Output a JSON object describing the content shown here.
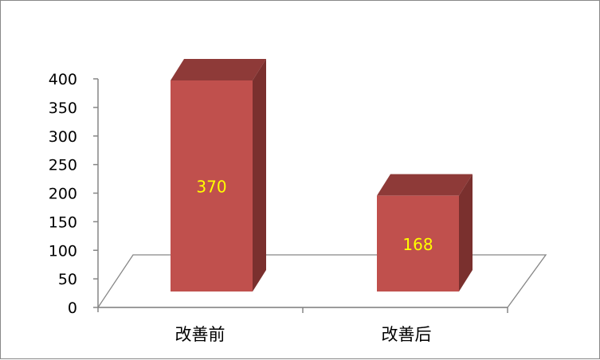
{
  "chart_data": {
    "type": "bar",
    "style": "3d-column",
    "categories": [
      "改善前",
      "改善后"
    ],
    "values": [
      370,
      168
    ],
    "data_labels": [
      "370",
      "168"
    ],
    "ylim": [
      0,
      400
    ],
    "yticks": [
      "0",
      "50",
      "100",
      "150",
      "200",
      "250",
      "300",
      "350",
      "400"
    ],
    "grid": false,
    "legend": "none",
    "colors": {
      "bar_front": "#C0504D",
      "bar_top": "#8E3A38",
      "bar_side": "#7A302E",
      "data_label": "#FFFF00",
      "axis": "#868686"
    }
  }
}
